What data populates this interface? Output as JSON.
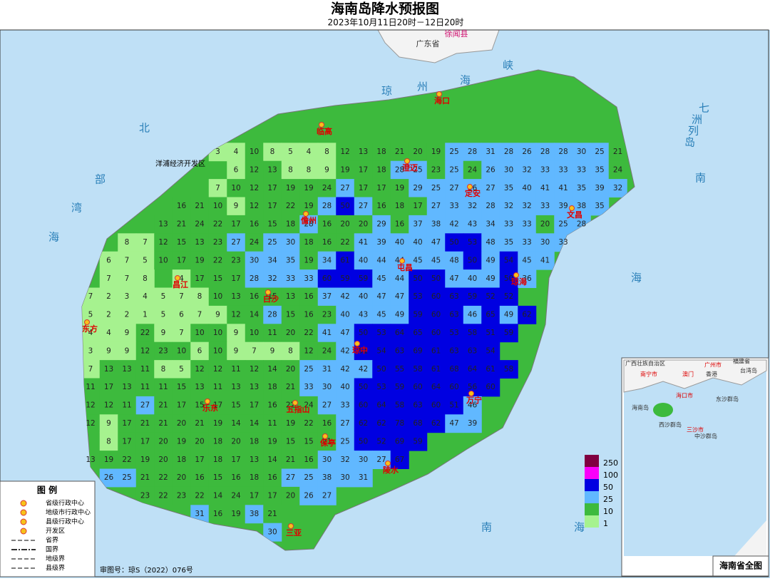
{
  "header": {
    "title": "海南岛降水预报图",
    "subtitle": "2023年10月11日20时－12日20时"
  },
  "places": {
    "mainland": [
      "徐闻县",
      "广东省"
    ],
    "cities": [
      "海口",
      "临高",
      "澄迈",
      "定安",
      "文昌",
      "儋州",
      "屯昌",
      "琼海",
      "昌江",
      "白沙",
      "东方",
      "琼中",
      "万宁",
      "乐东",
      "五指山",
      "保亭",
      "陵水",
      "三亚"
    ],
    "zone": "洋浦经济开发区"
  },
  "sea_labels": {
    "strait": [
      "琼",
      "州",
      "海",
      "峡"
    ],
    "gulf": [
      "北",
      "部",
      "湾"
    ],
    "west_sea": [
      "海"
    ],
    "islands": [
      "七",
      "洲",
      "列",
      "岛"
    ],
    "east": [
      "南",
      "海"
    ],
    "south": [
      "南",
      "海"
    ]
  },
  "grid": {
    "rows": [
      [
        null,
        null,
        null,
        null,
        null,
        null,
        null,
        3,
        4,
        10,
        8,
        5,
        4,
        8,
        12,
        13,
        18,
        21,
        20,
        19,
        25,
        28,
        31,
        28,
        26,
        28,
        28,
        30,
        25,
        21
      ],
      [
        null,
        null,
        null,
        null,
        null,
        null,
        null,
        null,
        6,
        12,
        13,
        8,
        8,
        9,
        19,
        17,
        18,
        28,
        25,
        23,
        25,
        24,
        26,
        30,
        32,
        33,
        33,
        33,
        35,
        24
      ],
      [
        null,
        null,
        null,
        null,
        null,
        null,
        null,
        7,
        10,
        12,
        17,
        19,
        19,
        24,
        27,
        17,
        17,
        19,
        29,
        25,
        27,
        26,
        27,
        35,
        40,
        41,
        41,
        35,
        39,
        32
      ],
      [
        null,
        null,
        null,
        null,
        null,
        16,
        21,
        10,
        9,
        12,
        17,
        22,
        19,
        28,
        50,
        27,
        16,
        18,
        17,
        27,
        33,
        32,
        28,
        32,
        32,
        33,
        39,
        38,
        35
      ],
      [
        null,
        null,
        null,
        null,
        13,
        21,
        24,
        22,
        17,
        16,
        15,
        18,
        28,
        16,
        20,
        20,
        29,
        16,
        37,
        38,
        42,
        43,
        34,
        33,
        33,
        20,
        25,
        28
      ],
      [
        null,
        null,
        8,
        7,
        12,
        15,
        13,
        23,
        27,
        24,
        25,
        30,
        18,
        16,
        22,
        41,
        39,
        40,
        40,
        47,
        50,
        53,
        48,
        35,
        33,
        30,
        33
      ],
      [
        null,
        6,
        7,
        5,
        10,
        17,
        19,
        22,
        23,
        30,
        34,
        35,
        19,
        34,
        61,
        40,
        44,
        44,
        45,
        45,
        48,
        50,
        49,
        54,
        45,
        41
      ],
      [
        null,
        7,
        7,
        8,
        null,
        4,
        17,
        15,
        17,
        28,
        32,
        33,
        33,
        60,
        59,
        59,
        45,
        44,
        50,
        50,
        47,
        40,
        49,
        50,
        36
      ],
      [
        7,
        2,
        3,
        4,
        5,
        7,
        8,
        10,
        13,
        16,
        15,
        13,
        16,
        37,
        42,
        40,
        47,
        47,
        53,
        60,
        63,
        59,
        52,
        52
      ],
      [
        5,
        2,
        2,
        1,
        5,
        6,
        7,
        9,
        12,
        14,
        28,
        15,
        16,
        23,
        40,
        43,
        45,
        49,
        59,
        60,
        63,
        46,
        65,
        49,
        62
      ],
      [
        4,
        4,
        9,
        22,
        9,
        7,
        10,
        10,
        9,
        10,
        11,
        20,
        22,
        41,
        47,
        50,
        53,
        64,
        65,
        60,
        53,
        58,
        51,
        59
      ],
      [
        3,
        9,
        9,
        12,
        23,
        10,
        6,
        10,
        9,
        7,
        9,
        8,
        12,
        24,
        42,
        51,
        54,
        63,
        69,
        61,
        63,
        63,
        54
      ],
      [
        7,
        13,
        13,
        11,
        8,
        5,
        12,
        12,
        11,
        12,
        14,
        20,
        25,
        31,
        42,
        42,
        50,
        55,
        58,
        61,
        68,
        64,
        61,
        58
      ],
      [
        11,
        17,
        13,
        11,
        11,
        15,
        13,
        11,
        13,
        13,
        18,
        21,
        33,
        30,
        40,
        50,
        53,
        59,
        60,
        64,
        60,
        56,
        60
      ],
      [
        12,
        12,
        11,
        27,
        21,
        17,
        15,
        17,
        15,
        17,
        16,
        22,
        24,
        27,
        33,
        60,
        64,
        58,
        63,
        60,
        51,
        46
      ],
      [
        12,
        9,
        17,
        21,
        21,
        20,
        21,
        19,
        14,
        14,
        11,
        19,
        22,
        16,
        27,
        62,
        62,
        78,
        68,
        62,
        47,
        39
      ],
      [
        null,
        8,
        17,
        17,
        20,
        19,
        20,
        18,
        20,
        18,
        19,
        15,
        15,
        21,
        25,
        50,
        52,
        69,
        59
      ],
      [
        13,
        19,
        22,
        19,
        20,
        18,
        17,
        18,
        17,
        13,
        14,
        21,
        16,
        30,
        32,
        30,
        27,
        67
      ],
      [
        null,
        26,
        25,
        21,
        22,
        20,
        16,
        15,
        16,
        18,
        16,
        27,
        25,
        38,
        30,
        31
      ],
      [
        null,
        null,
        null,
        23,
        22,
        23,
        22,
        14,
        24,
        17,
        17,
        20,
        26,
        27
      ],
      [
        null,
        null,
        null,
        null,
        null,
        null,
        31,
        16,
        19,
        38,
        21
      ],
      [
        null,
        null,
        null,
        null,
        null,
        null,
        null,
        null,
        null,
        null,
        30
      ]
    ]
  },
  "scale": {
    "thresholds": [
      1,
      10,
      25,
      50,
      100,
      250
    ],
    "colors": [
      "#a6f28f",
      "#3dba3d",
      "#61b8ff",
      "#0000e1",
      "#fa00fa",
      "#800040"
    ]
  },
  "legend": {
    "title": "图 例",
    "items": [
      "省级行政中心",
      "地级市行政中心",
      "县级行政中心",
      "开发区",
      "省界",
      "国界",
      "地级界",
      "县级界"
    ]
  },
  "approval": "审图号：琼S（2022）076号",
  "inset": {
    "title": "海南省全图",
    "labels": [
      "广西壮族自治区",
      "南宁市",
      "广州市",
      "香港",
      "澳门",
      "海口市",
      "海南岛",
      "三沙市",
      "西沙群岛",
      "中沙群岛",
      "东沙群岛",
      "台湾岛",
      "福建省"
    ]
  }
}
